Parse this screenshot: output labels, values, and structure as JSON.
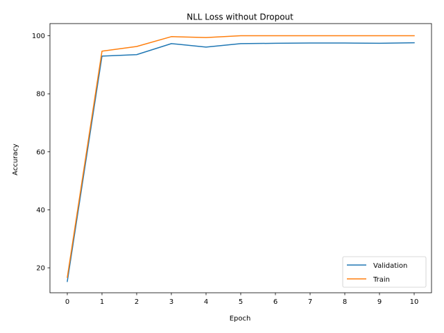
{
  "chart_data": {
    "type": "line",
    "title": "NLL Loss without Dropout",
    "xlabel": "Epoch",
    "ylabel": "Accuracy",
    "x": [
      0,
      1,
      2,
      3,
      4,
      5,
      6,
      7,
      8,
      9,
      10
    ],
    "xlim": [
      -0.5,
      10.5
    ],
    "ylim": [
      11.4,
      104.2
    ],
    "xticks": [
      "0",
      "1",
      "2",
      "3",
      "4",
      "5",
      "6",
      "7",
      "8",
      "9",
      "10"
    ],
    "yticks": [
      "20",
      "40",
      "60",
      "80",
      "100"
    ],
    "grid": false,
    "legend_position": "lower-right",
    "series": [
      {
        "name": "Validation",
        "color": "#1f77b4",
        "values": [
          15.3,
          93.0,
          93.5,
          97.3,
          96.1,
          97.3,
          97.4,
          97.5,
          97.5,
          97.4,
          97.6
        ]
      },
      {
        "name": "Train",
        "color": "#ff7f0e",
        "values": [
          16.7,
          94.7,
          96.3,
          99.7,
          99.4,
          100.0,
          100.0,
          100.0,
          100.0,
          100.0,
          100.0
        ]
      }
    ]
  }
}
